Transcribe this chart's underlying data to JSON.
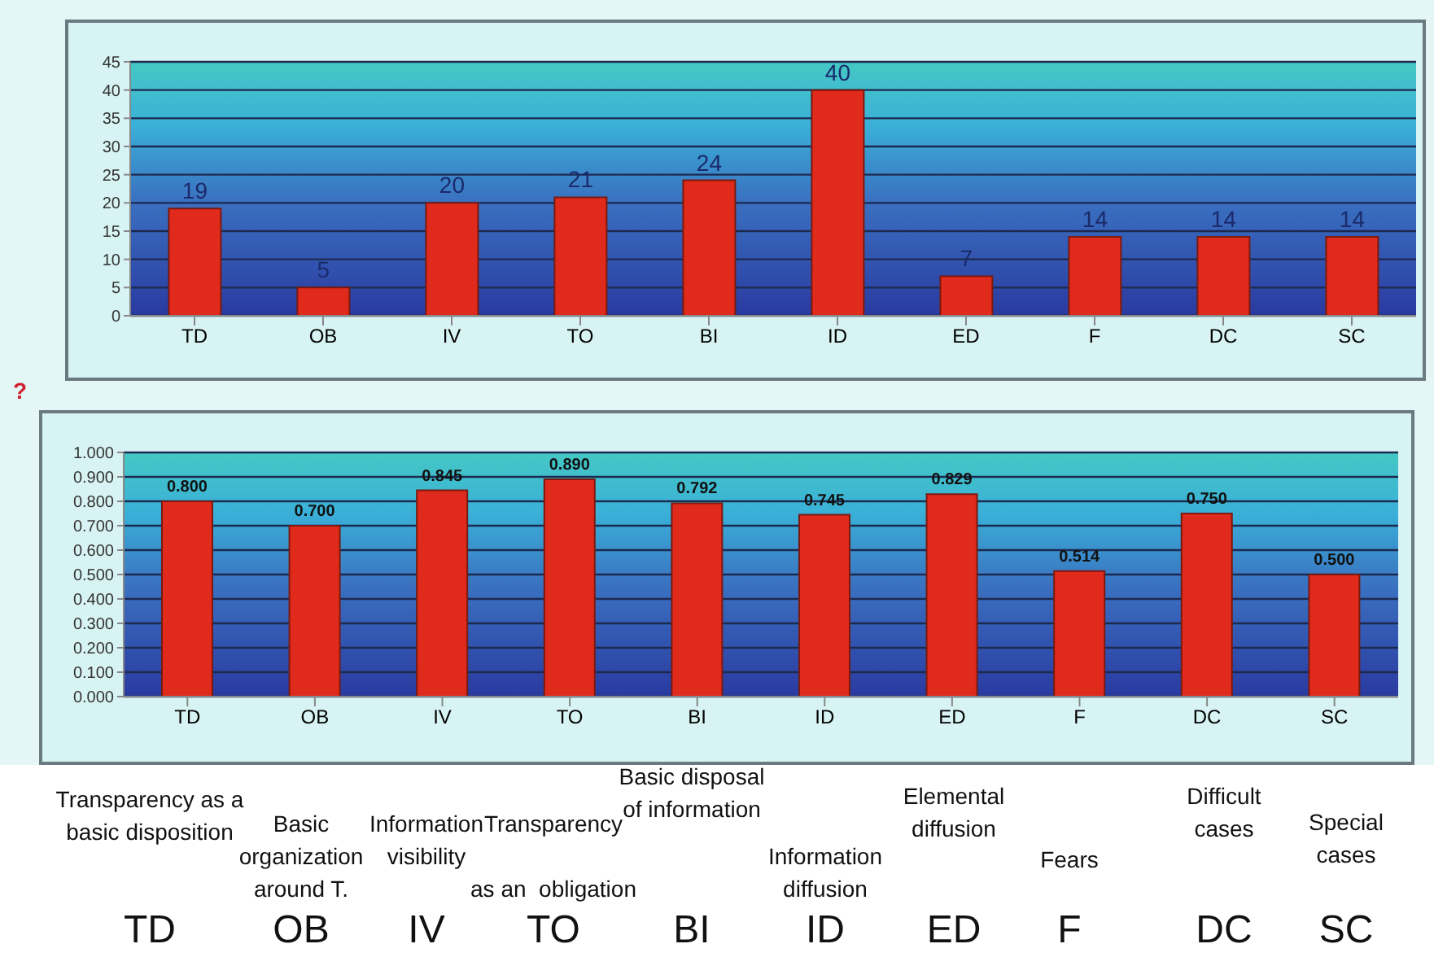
{
  "chart_data": [
    {
      "type": "bar",
      "categories": [
        "TD",
        "OB",
        "IV",
        "TO",
        "BI",
        "ID",
        "ED",
        "F",
        "DC",
        "SC"
      ],
      "values": [
        19,
        5,
        20,
        21,
        24,
        40,
        7,
        14,
        14,
        14
      ],
      "color": "#e02a1c",
      "ylim": [
        0,
        45
      ],
      "yticks": [
        0,
        5,
        10,
        15,
        20,
        25,
        30,
        35,
        40,
        45
      ],
      "grid": "y",
      "data_labels": true
    },
    {
      "type": "bar",
      "categories": [
        "TD",
        "OB",
        "IV",
        "TO",
        "BI",
        "ID",
        "ED",
        "F",
        "DC",
        "SC"
      ],
      "values": [
        0.8,
        0.7,
        0.845,
        0.89,
        0.792,
        0.745,
        0.829,
        0.514,
        0.75,
        0.5
      ],
      "value_labels": [
        "0.800",
        "0.700",
        "0.845",
        "0.890",
        "0.792",
        "0.745",
        "0.829",
        "0.514",
        "0.750",
        "0.500"
      ],
      "color": "#e02a1c",
      "ylim": [
        0,
        1
      ],
      "yticks": [
        {
          "value": 0,
          "label": "0.000"
        },
        {
          "value": 0.1,
          "label": "0.100"
        },
        {
          "value": 0.2,
          "label": "0.200"
        },
        {
          "value": 0.3,
          "label": "0.300"
        },
        {
          "value": 0.4,
          "label": "0.400"
        },
        {
          "value": 0.5,
          "label": "0.500"
        },
        {
          "value": 0.6,
          "label": "0.600"
        },
        {
          "value": 0.7,
          "label": "0.700"
        },
        {
          "value": 0.8,
          "label": "0.800"
        },
        {
          "value": 0.9,
          "label": "0.900"
        },
        {
          "value": 1,
          "label": "1.000"
        }
      ],
      "grid": "y",
      "annotations": [
        "?"
      ]
    },
    {
      "type": "other",
      "categories": [
        "TD",
        "OB",
        "IV",
        "TO",
        "BI",
        "ID",
        "ED",
        "F",
        "DC",
        "SC"
      ],
      "annotations": [
        "Transparency as a\nbasic disposition",
        "Basic\norganization\naround T.",
        "Information\nvisibility",
        "Transparency\n\nas an  obligation",
        "Basic disposal\nof information",
        "Information\ndiffusion",
        "Elemental\ndiffusion",
        "Fears",
        "Difficult\ncases",
        "Special\ncases"
      ]
    }
  ]
}
